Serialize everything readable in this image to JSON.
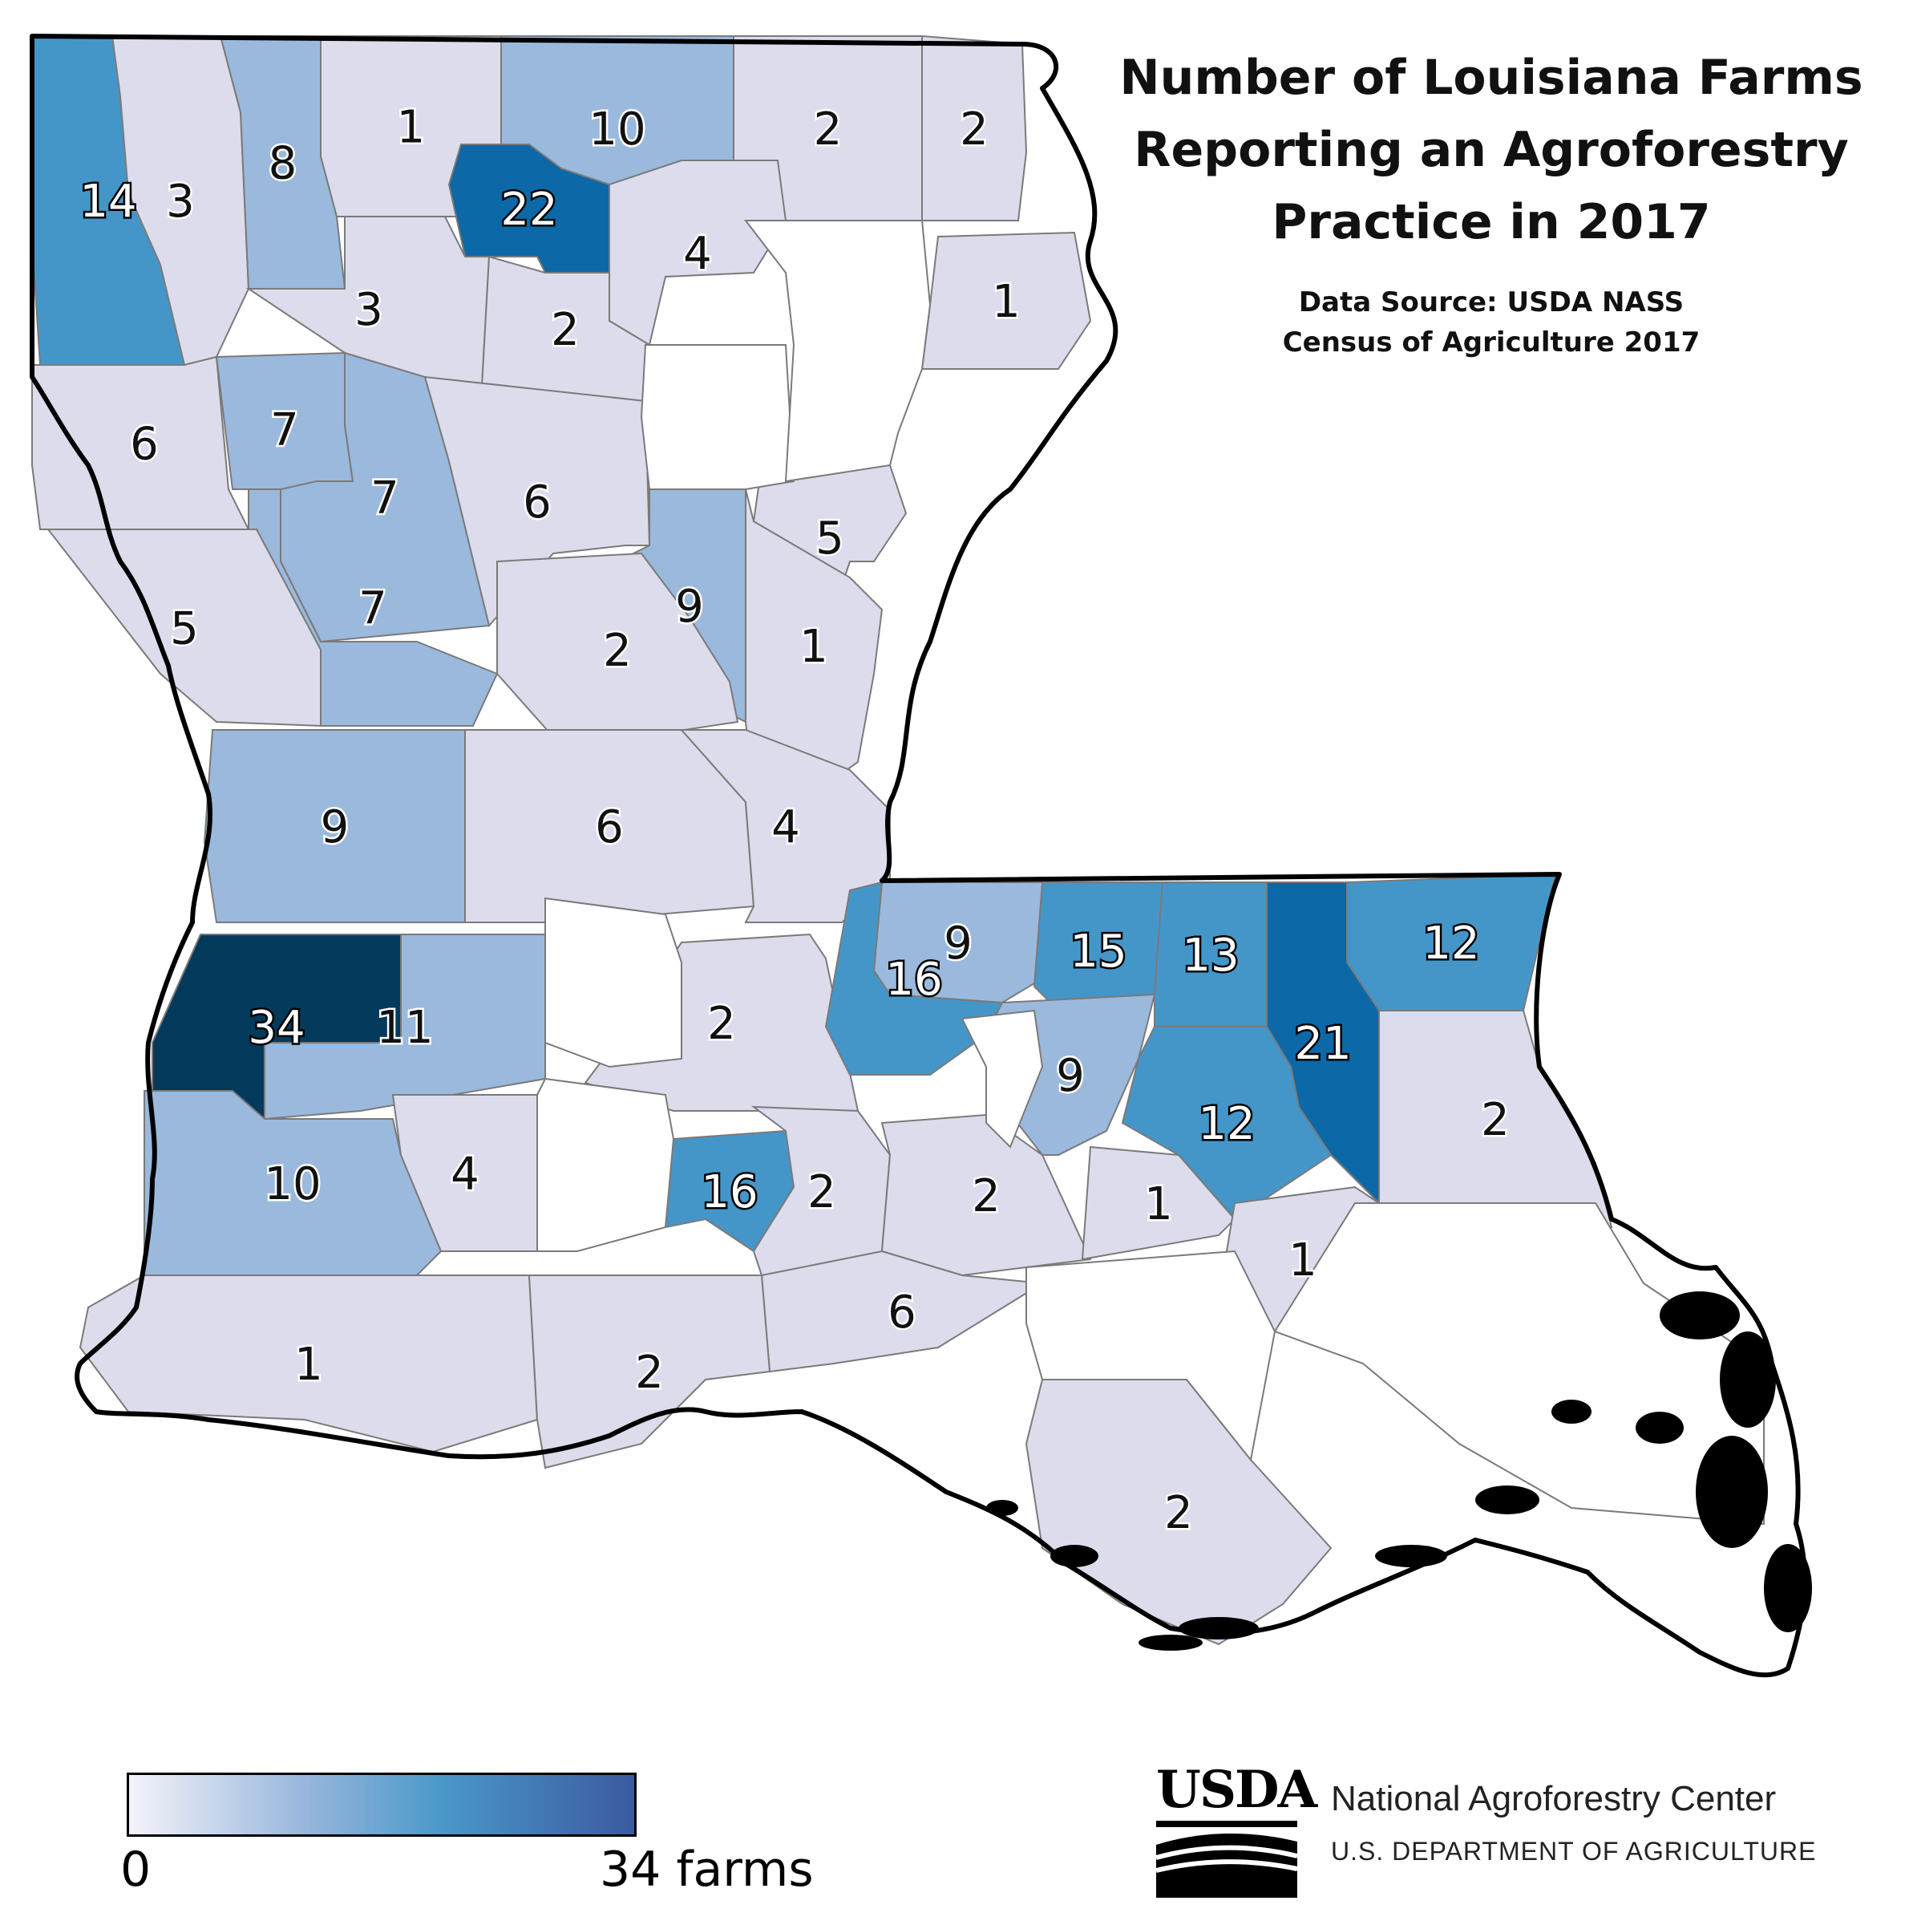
{
  "title": {
    "line1": "Number of Louisiana Farms",
    "line2": "Reporting an Agroforestry",
    "line3": "Practice in 2017"
  },
  "source": {
    "line1": "Data Source: USDA NASS",
    "line2": "Census of Agriculture 2017"
  },
  "legend": {
    "min_label": "0",
    "max_label": "34 farms",
    "min": 0,
    "max": 34
  },
  "colors": {
    "zero": "#ffffff",
    "low": "#dcdcec",
    "mid": "#9bb9dc",
    "high": "#4596c8",
    "very_high": "#0c68a6",
    "max": "#033a5c",
    "border": "#7a7a7a",
    "state_outline": "#000000"
  },
  "logo": {
    "wordmark": "USDA",
    "org": "National Agroforestry Center",
    "dept": "U.S. DEPARTMENT OF AGRICULTURE"
  },
  "counties": [
    {
      "label": "14",
      "value": 14
    },
    {
      "label": "3",
      "value": 3
    },
    {
      "label": "8",
      "value": 8
    },
    {
      "label": "1",
      "value": 1
    },
    {
      "label": "10",
      "value": 10
    },
    {
      "label": "2",
      "value": 2
    },
    {
      "label": "2",
      "value": 2
    },
    {
      "label": "22",
      "value": 22
    },
    {
      "label": "4",
      "value": 4
    },
    {
      "label": "3",
      "value": 3
    },
    {
      "label": "2",
      "value": 2
    },
    {
      "label": "1",
      "value": 1
    },
    {
      "label": "6",
      "value": 6
    },
    {
      "label": "7",
      "value": 7
    },
    {
      "label": "7",
      "value": 7
    },
    {
      "label": "6",
      "value": 6
    },
    {
      "label": "7",
      "value": 7
    },
    {
      "label": "9",
      "value": 9
    },
    {
      "label": "5",
      "value": 5
    },
    {
      "label": "5",
      "value": 5
    },
    {
      "label": "2",
      "value": 2
    },
    {
      "label": "1",
      "value": 1
    },
    {
      "label": "9",
      "value": 9
    },
    {
      "label": "6",
      "value": 6
    },
    {
      "label": "4",
      "value": 4
    },
    {
      "label": "9",
      "value": 9
    },
    {
      "label": "15",
      "value": 15
    },
    {
      "label": "13",
      "value": 13
    },
    {
      "label": "12",
      "value": 12
    },
    {
      "label": "34",
      "value": 34
    },
    {
      "label": "11",
      "value": 11
    },
    {
      "label": "2",
      "value": 2
    },
    {
      "label": "16",
      "value": 16
    },
    {
      "label": "21",
      "value": 21
    },
    {
      "label": "9",
      "value": 9
    },
    {
      "label": "12",
      "value": 12
    },
    {
      "label": "2",
      "value": 2
    },
    {
      "label": "10",
      "value": 10
    },
    {
      "label": "4",
      "value": 4
    },
    {
      "label": "16",
      "value": 16
    },
    {
      "label": "2",
      "value": 2
    },
    {
      "label": "2",
      "value": 2
    },
    {
      "label": "1",
      "value": 1
    },
    {
      "label": "1",
      "value": 1
    },
    {
      "label": "6",
      "value": 6
    },
    {
      "label": "1",
      "value": 1
    },
    {
      "label": "2",
      "value": 2
    },
    {
      "label": "2",
      "value": 2
    }
  ]
}
